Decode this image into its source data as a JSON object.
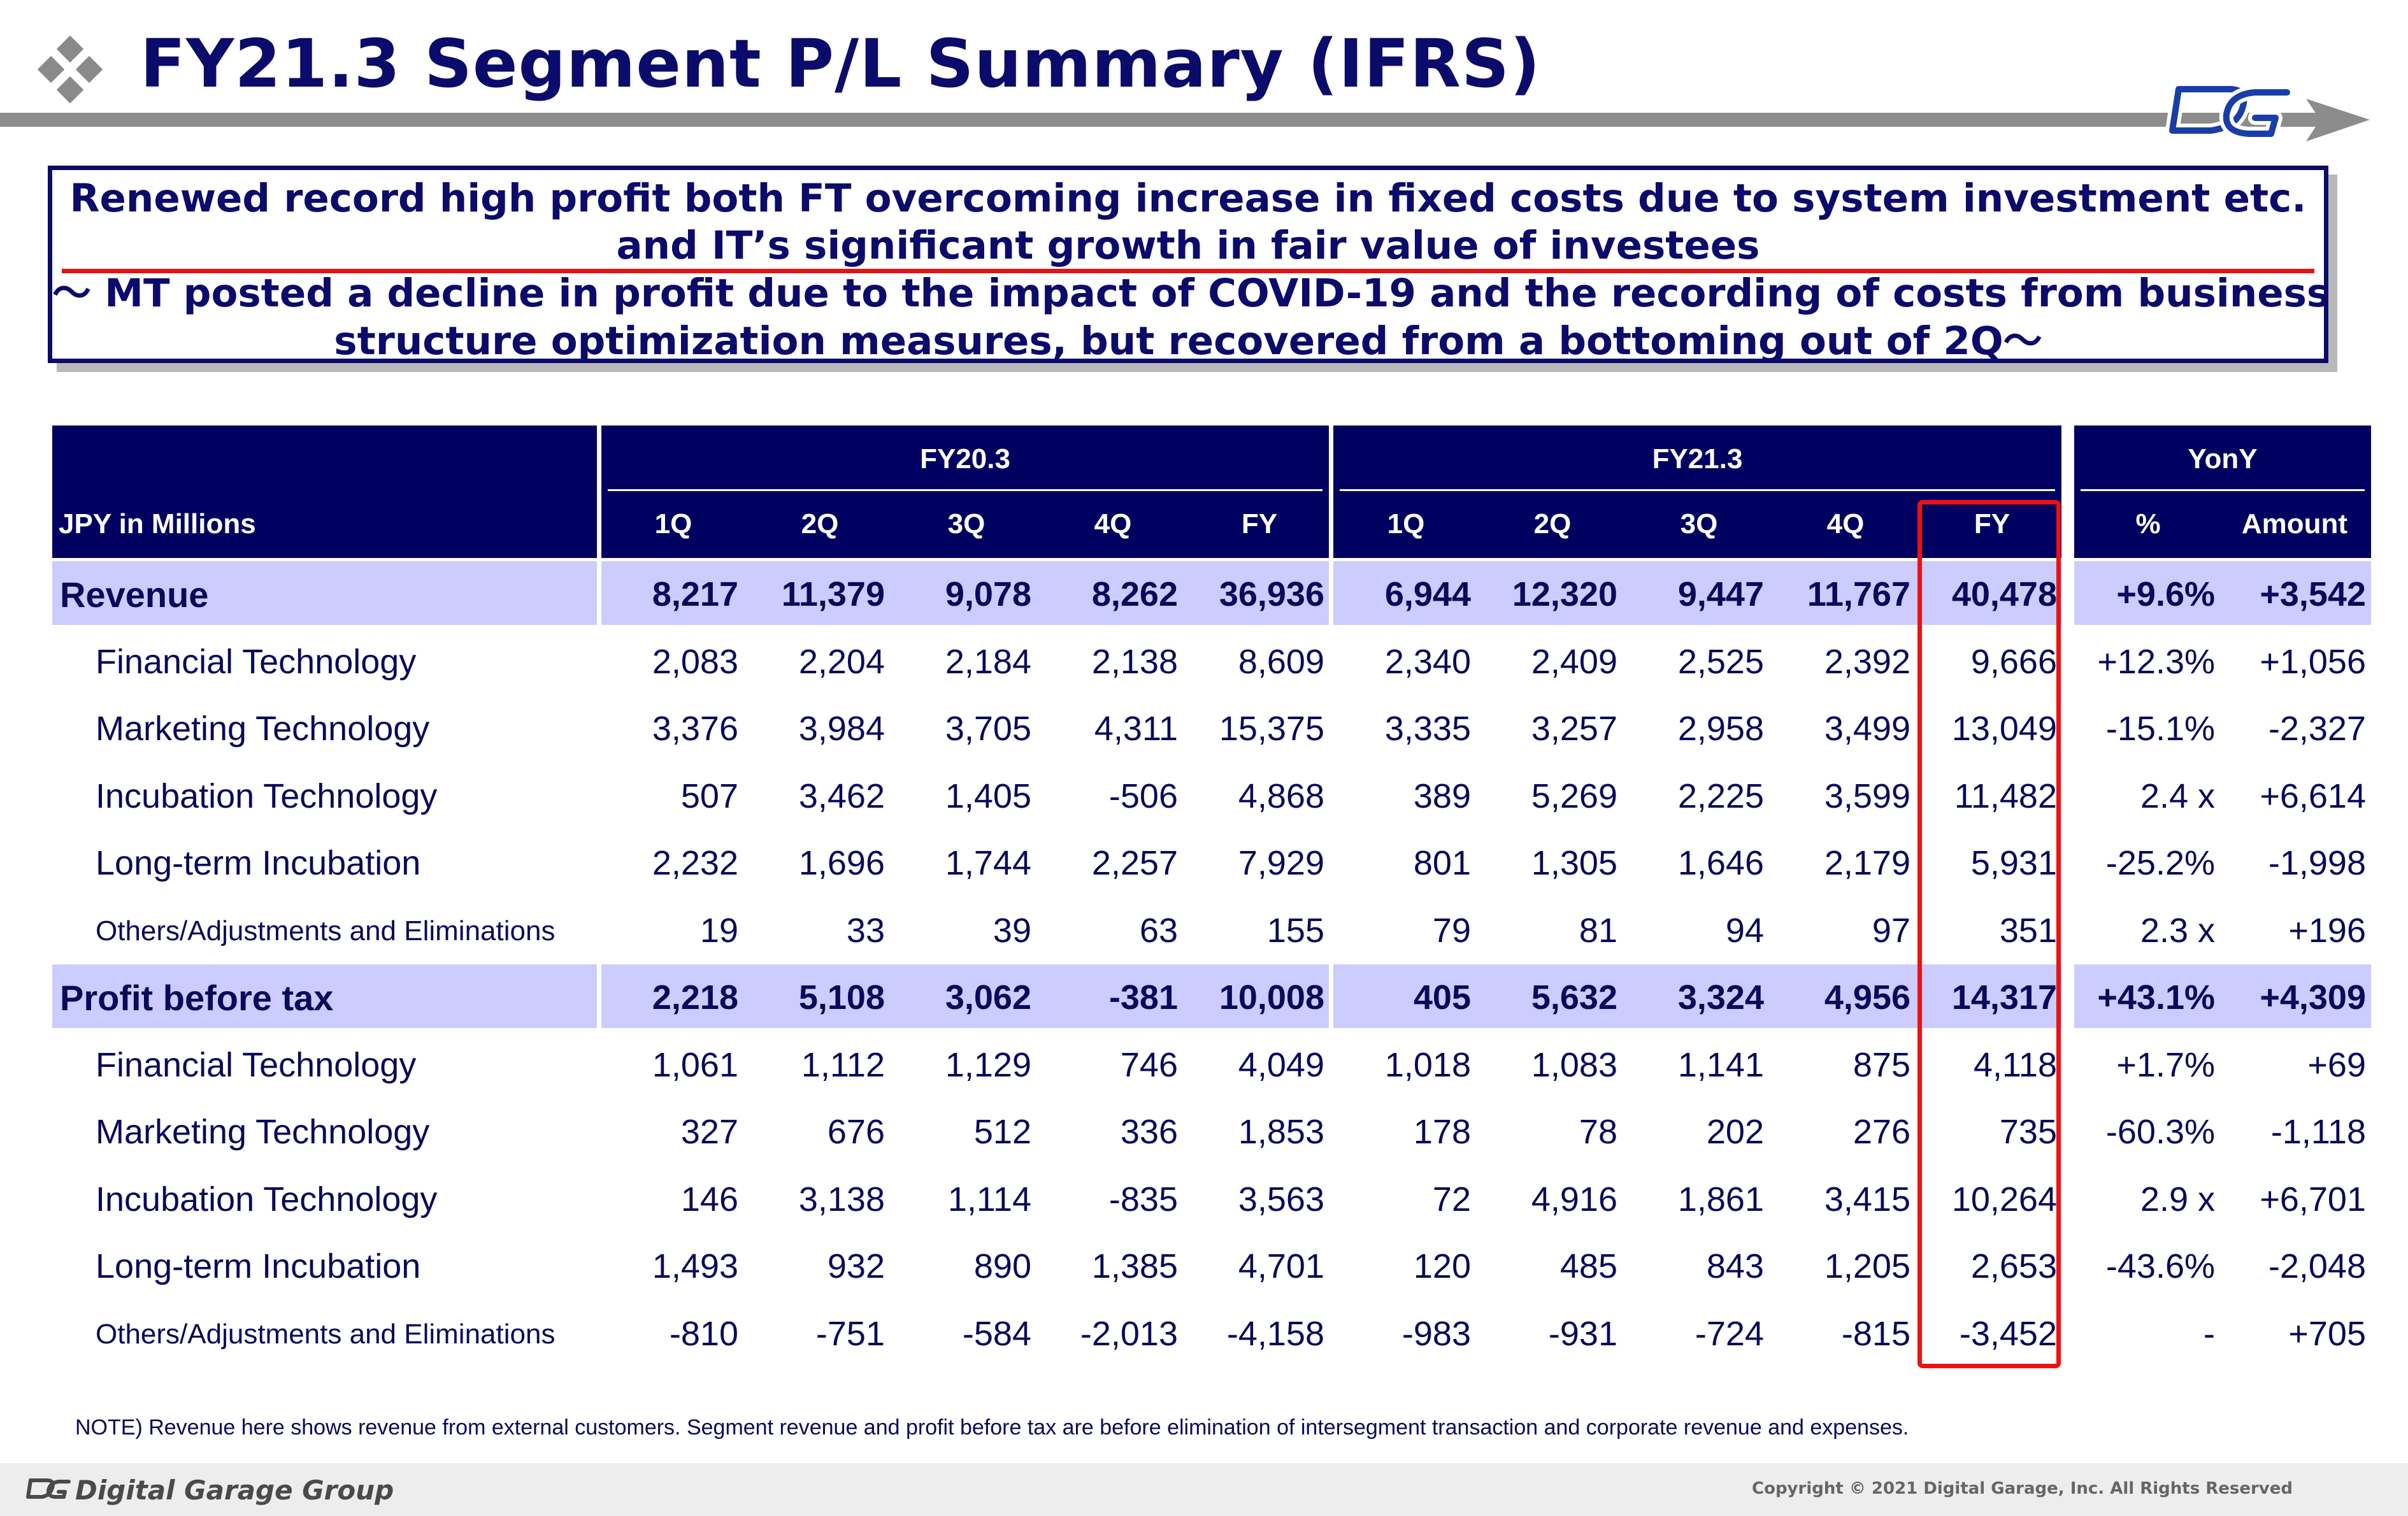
{
  "header": {
    "title": "FY21.3 Segment P/L Summary (IFRS)"
  },
  "headline": {
    "line1": "Renewed record high profit both FT overcoming increase in fixed costs due to system investment etc.",
    "line2": "and IT’s significant growth in fair value of investees",
    "line3": "～ MT posted a decline in profit due to the impact of COVID-19 and the recording of costs from business",
    "line4": "structure optimization measures, but recovered from a bottoming out of 2Q～"
  },
  "table": {
    "unit_label": "JPY in Millions",
    "groups": [
      "FY20.3",
      "FY21.3",
      "YonY"
    ],
    "columns": [
      "1Q",
      "2Q",
      "3Q",
      "4Q",
      "FY",
      "1Q",
      "2Q",
      "3Q",
      "4Q",
      "FY",
      "%",
      "Amount"
    ],
    "rows": [
      {
        "label": "Revenue",
        "total": true,
        "values": [
          "8,217",
          "11,379",
          "9,078",
          "8,262",
          "36,936",
          "6,944",
          "12,320",
          "9,447",
          "11,767",
          "40,478",
          "+9.6%",
          "+3,542"
        ]
      },
      {
        "label": "Financial Technology",
        "values": [
          "2,083",
          "2,204",
          "2,184",
          "2,138",
          "8,609",
          "2,340",
          "2,409",
          "2,525",
          "2,392",
          "9,666",
          "+12.3%",
          "+1,056"
        ]
      },
      {
        "label": "Marketing Technology",
        "values": [
          "3,376",
          "3,984",
          "3,705",
          "4,311",
          "15,375",
          "3,335",
          "3,257",
          "2,958",
          "3,499",
          "13,049",
          "-15.1%",
          "-2,327"
        ]
      },
      {
        "label": "Incubation Technology",
        "values": [
          "507",
          "3,462",
          "1,405",
          "-506",
          "4,868",
          "389",
          "5,269",
          "2,225",
          "3,599",
          "11,482",
          "2.4 x",
          "+6,614"
        ]
      },
      {
        "label": "Long-term Incubation",
        "values": [
          "2,232",
          "1,696",
          "1,744",
          "2,257",
          "7,929",
          "801",
          "1,305",
          "1,646",
          "2,179",
          "5,931",
          "-25.2%",
          "-1,998"
        ]
      },
      {
        "label": "Others/Adjustments and Eliminations",
        "small": true,
        "values": [
          "19",
          "33",
          "39",
          "63",
          "155",
          "79",
          "81",
          "94",
          "97",
          "351",
          "2.3 x",
          "+196"
        ]
      },
      {
        "label": "Profit before tax",
        "total": true,
        "values": [
          "2,218",
          "5,108",
          "3,062",
          "-381",
          "10,008",
          "405",
          "5,632",
          "3,324",
          "4,956",
          "14,317",
          "+43.1%",
          "+4,309"
        ]
      },
      {
        "label": "Financial Technology",
        "values": [
          "1,061",
          "1,112",
          "1,129",
          "746",
          "4,049",
          "1,018",
          "1,083",
          "1,141",
          "875",
          "4,118",
          "+1.7%",
          "+69"
        ]
      },
      {
        "label": "Marketing Technology",
        "values": [
          "327",
          "676",
          "512",
          "336",
          "1,853",
          "178",
          "78",
          "202",
          "276",
          "735",
          "-60.3%",
          "-1,118"
        ]
      },
      {
        "label": "Incubation Technology",
        "values": [
          "146",
          "3,138",
          "1,114",
          "-835",
          "3,563",
          "72",
          "4,916",
          "1,861",
          "3,415",
          "10,264",
          "2.9 x",
          "+6,701"
        ]
      },
      {
        "label": "Long-term Incubation",
        "values": [
          "1,493",
          "932",
          "890",
          "1,385",
          "4,701",
          "120",
          "485",
          "843",
          "1,205",
          "2,653",
          "-43.6%",
          "-2,048"
        ]
      },
      {
        "label": "Others/Adjustments and Eliminations",
        "small": true,
        "values": [
          "-810",
          "-751",
          "-584",
          "-2,013",
          "-4,158",
          "-983",
          "-931",
          "-724",
          "-815",
          "-3,452",
          "-",
          "+705"
        ]
      }
    ]
  },
  "note": "NOTE) Revenue here shows revenue from external customers. Segment revenue and profit before tax are before elimination of intersegment transaction and corporate revenue and expenses.",
  "footer": {
    "brand": "Digital Garage Group",
    "copyright": "Copyright © 2021 Digital Garage, Inc. All Rights Reserved"
  },
  "colors": {
    "navy": "#000060",
    "title": "#0b0b6b",
    "total_row": "#ccccff",
    "highlight": "#ee1111"
  }
}
